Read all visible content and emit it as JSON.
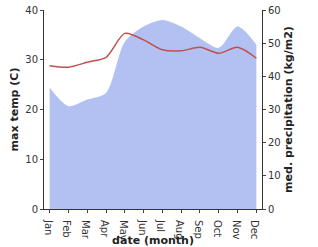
{
  "chart_data": {
    "type": "line",
    "categories": [
      "Jan",
      "Feb",
      "Mar",
      "Apr",
      "May",
      "Jun",
      "Jul",
      "Aug",
      "Sep",
      "Oct",
      "Nov",
      "Dec"
    ],
    "x_label": "date (month)",
    "y_label": "max temp (C)",
    "y2_label": "med. precipitation (kg/m2)",
    "ylim": [
      0,
      40
    ],
    "yticks": [
      0,
      10,
      20,
      30,
      40
    ],
    "y2lim": [
      0,
      60
    ],
    "y2ticks": [
      0,
      10,
      20,
      30,
      40,
      50,
      60
    ],
    "grid": false,
    "series": [
      {
        "name": "med. precipitation (kg/m2)",
        "type": "area",
        "axis": "y2",
        "color": "#b3c1f2",
        "values": [
          36.6,
          31,
          33,
          35,
          50.4,
          55,
          57,
          55,
          51.5,
          48.6,
          55,
          49.5
        ]
      },
      {
        "name": "max temp (C)",
        "type": "line",
        "color": "#c0504d",
        "values": [
          28.8,
          28.5,
          29.5,
          30.5,
          35.3,
          34,
          32,
          31.8,
          32.5,
          31.3,
          32.5,
          30.3
        ]
      }
    ]
  }
}
